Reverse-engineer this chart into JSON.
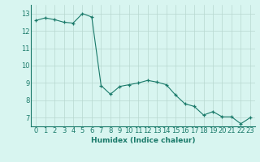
{
  "x": [
    0,
    1,
    2,
    3,
    4,
    5,
    6,
    7,
    8,
    9,
    10,
    11,
    12,
    13,
    14,
    15,
    16,
    17,
    18,
    19,
    20,
    21,
    22,
    23
  ],
  "y": [
    12.6,
    12.75,
    12.65,
    12.5,
    12.45,
    13.0,
    12.8,
    8.85,
    8.35,
    8.8,
    8.9,
    9.0,
    9.15,
    9.05,
    8.9,
    8.3,
    7.8,
    7.65,
    7.15,
    7.35,
    7.05,
    7.05,
    6.65,
    7.0
  ],
  "line_color": "#1a7a6a",
  "marker": "+",
  "marker_size": 3,
  "bg_color": "#d8f5f0",
  "grid_color": "#b8d8d0",
  "xlabel": "Humidex (Indice chaleur)",
  "xlim": [
    -0.5,
    23.5
  ],
  "ylim": [
    6.5,
    13.5
  ],
  "yticks": [
    7,
    8,
    9,
    10,
    11,
    12,
    13
  ],
  "font_color": "#1a7a6a",
  "label_fontsize": 6.5,
  "tick_fontsize": 6.0
}
